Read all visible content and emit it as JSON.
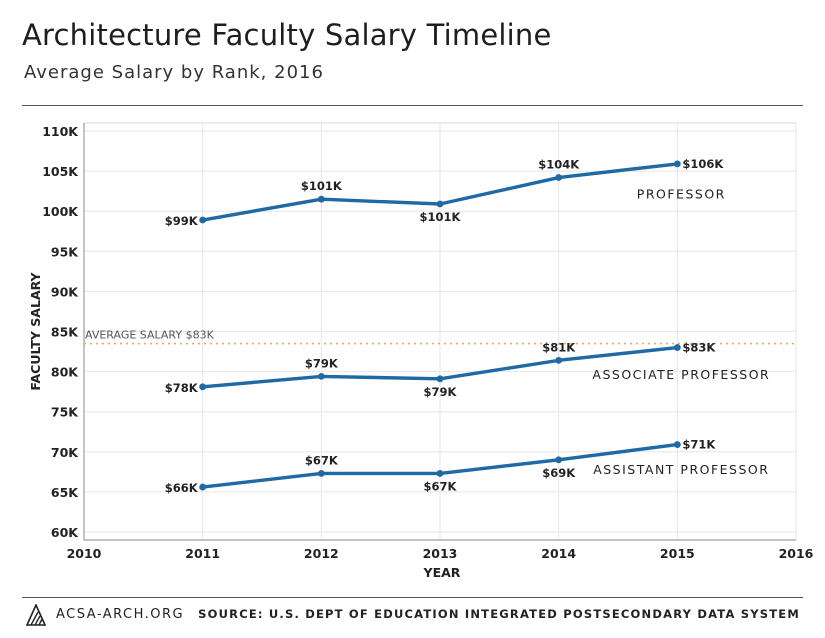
{
  "header": {
    "title": "Architecture Faculty Salary Timeline",
    "subtitle": "Average Salary by Rank, 2016"
  },
  "footer": {
    "site": "ACSA-ARCH.ORG",
    "source": "SOURCE: U.S. DEPT OF EDUCATION INTEGRATED POSTSECONDARY DATA SYSTEM",
    "logo_icon": "acsa-logo-icon"
  },
  "colors": {
    "series": "#1f6aa5",
    "reference": "#f0a868",
    "grid": "#e6e6e6",
    "axis": "#888888"
  },
  "chart_data": {
    "type": "line",
    "xlabel": "YEAR",
    "ylabel": "FACULTY SALARY",
    "xlim": [
      2010,
      2016
    ],
    "ylim": [
      59,
      111
    ],
    "x_ticks": [
      2010,
      2011,
      2012,
      2013,
      2014,
      2015,
      2016
    ],
    "x_tick_labels": [
      "2010",
      "2011",
      "2012",
      "2013",
      "2014",
      "2015",
      "2016"
    ],
    "y_ticks": [
      60,
      65,
      70,
      75,
      80,
      85,
      90,
      95,
      100,
      105,
      110
    ],
    "y_tick_labels": [
      "60K",
      "65K",
      "70K",
      "75K",
      "80K",
      "85K",
      "90K",
      "95K",
      "100K",
      "105K",
      "110K"
    ],
    "grid": true,
    "reference_line": {
      "value": 83.5,
      "label": "AVERAGE SALARY $83K"
    },
    "series": [
      {
        "name": "PROFESSOR",
        "x": [
          2011,
          2012,
          2013,
          2014,
          2015
        ],
        "values": [
          98.9,
          101.5,
          100.9,
          104.2,
          105.9
        ],
        "labels": [
          "$99K",
          "$101K",
          "$101K",
          "$104K",
          "$106K"
        ]
      },
      {
        "name": "ASSOCIATE PROFESSOR",
        "x": [
          2011,
          2012,
          2013,
          2014,
          2015
        ],
        "values": [
          78.1,
          79.4,
          79.1,
          81.4,
          83.0
        ],
        "labels": [
          "$78K",
          "$79K",
          "$79K",
          "$81K",
          "$83K"
        ]
      },
      {
        "name": "ASSISTANT PROFESSOR",
        "x": [
          2011,
          2012,
          2013,
          2014,
          2015
        ],
        "values": [
          65.6,
          67.3,
          67.3,
          69.0,
          70.9
        ],
        "labels": [
          "$66K",
          "$67K",
          "$67K",
          "$69K",
          "$71K"
        ]
      }
    ]
  }
}
